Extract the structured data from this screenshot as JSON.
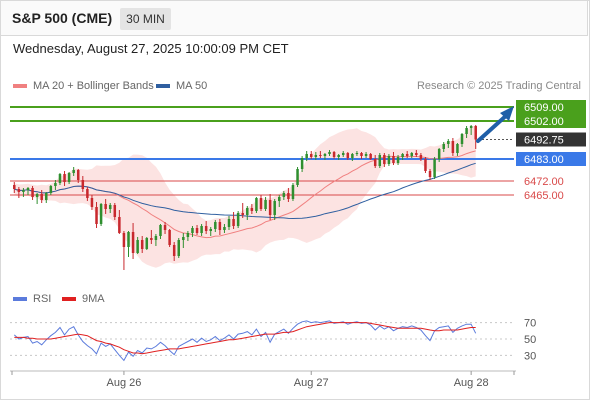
{
  "header": {
    "title": "S&P 500 (CME)",
    "timeframe": "30 MIN"
  },
  "datetime": "Wednesday, August 27, 2025 10:00:09 PM CET",
  "legend": {
    "ma20_label": "MA 20 + Bollinger Bands",
    "ma50_label": "MA 50",
    "rsi_label": "RSI",
    "ma9_label": "9MA"
  },
  "copyright": "Research © 2025 Trading Central",
  "colors": {
    "up": "#2f8f2f",
    "down": "#c8282d",
    "resistance": "#4aa01c",
    "pivot": "#3a79e8",
    "support": "#d94a4a",
    "current": "#333333",
    "arrow": "#1f5fa8",
    "ma20": "#f08080",
    "ma50": "#2f5fa0",
    "bollinger_fill": "#fbdad8",
    "rsi": "#5b7bdc",
    "rsi_ma": "#e02020"
  },
  "chart_data": [
    {
      "type": "candlestick",
      "title": "",
      "x_ticks": [
        "Aug 26",
        "Aug 27",
        "Aug 28"
      ],
      "ylim": [
        6420,
        6515
      ],
      "levels": [
        {
          "name": "resistance-2",
          "value": 6509.0,
          "label": "6509.00",
          "kind": "resistance"
        },
        {
          "name": "resistance-1",
          "value": 6502.0,
          "label": "6502.00",
          "kind": "resistance"
        },
        {
          "name": "current",
          "value": 6492.75,
          "label": "6492.75",
          "kind": "current"
        },
        {
          "name": "pivot",
          "value": 6483.0,
          "label": "6483.00",
          "kind": "pivot"
        },
        {
          "name": "support-1",
          "value": 6472.0,
          "label": "6472.00",
          "kind": "support"
        },
        {
          "name": "support-2",
          "value": 6465.0,
          "label": "6465.00",
          "kind": "support"
        }
      ],
      "candles": [
        [
          6470.0,
          6471.5,
          6466.0,
          6468.0
        ],
        [
          6468.0,
          6469.0,
          6463.5,
          6466.5
        ],
        [
          6466.5,
          6468.5,
          6464.0,
          6467.5
        ],
        [
          6467.5,
          6469.0,
          6465.0,
          6468.5
        ],
        [
          6468.5,
          6469.5,
          6462.5,
          6464.0
        ],
        [
          6464.0,
          6466.0,
          6460.5,
          6465.5
        ],
        [
          6465.5,
          6467.5,
          6461.0,
          6462.5
        ],
        [
          6462.5,
          6466.5,
          6461.0,
          6466.0
        ],
        [
          6466.0,
          6470.0,
          6465.0,
          6469.5
        ],
        [
          6469.5,
          6472.5,
          6467.5,
          6471.0
        ],
        [
          6471.0,
          6476.0,
          6470.0,
          6475.5
        ],
        [
          6475.5,
          6477.0,
          6469.5,
          6471.5
        ],
        [
          6471.5,
          6476.5,
          6470.5,
          6476.0
        ],
        [
          6476.0,
          6479.0,
          6474.5,
          6477.5
        ],
        [
          6477.5,
          6478.0,
          6471.0,
          6472.5
        ],
        [
          6472.5,
          6474.5,
          6466.5,
          6468.0
        ],
        [
          6468.0,
          6469.0,
          6462.0,
          6463.5
        ],
        [
          6463.5,
          6465.0,
          6457.5,
          6459.0
        ],
        [
          6459.0,
          6461.5,
          6448.5,
          6450.5
        ],
        [
          6450.5,
          6461.0,
          6449.5,
          6460.5
        ],
        [
          6460.5,
          6463.0,
          6455.5,
          6458.0
        ],
        [
          6458.0,
          6461.0,
          6456.0,
          6460.0
        ],
        [
          6460.0,
          6461.0,
          6452.5,
          6454.0
        ],
        [
          6454.0,
          6457.5,
          6445.5,
          6446.0
        ],
        [
          6446.0,
          6447.0,
          6427.5,
          6439.0
        ],
        [
          6439.0,
          6447.0,
          6434.0,
          6446.5
        ],
        [
          6446.5,
          6451.0,
          6433.0,
          6436.0
        ],
        [
          6436.0,
          6444.0,
          6435.5,
          6442.5
        ],
        [
          6442.5,
          6444.5,
          6436.0,
          6438.0
        ],
        [
          6438.0,
          6444.0,
          6437.5,
          6443.5
        ],
        [
          6443.5,
          6447.5,
          6440.5,
          6442.5
        ],
        [
          6442.5,
          6445.5,
          6439.5,
          6444.5
        ],
        [
          6444.5,
          6450.5,
          6443.0,
          6450.0
        ],
        [
          6450.0,
          6451.5,
          6445.5,
          6447.5
        ],
        [
          6447.5,
          6448.0,
          6439.0,
          6440.0
        ],
        [
          6440.0,
          6441.5,
          6432.0,
          6434.5
        ],
        [
          6434.5,
          6443.5,
          6433.5,
          6442.5
        ],
        [
          6442.5,
          6446.0,
          6438.5,
          6444.0
        ],
        [
          6444.0,
          6447.0,
          6442.0,
          6446.0
        ],
        [
          6446.0,
          6449.5,
          6444.0,
          6448.5
        ],
        [
          6448.5,
          6450.0,
          6445.0,
          6446.0
        ],
        [
          6446.0,
          6450.5,
          6444.5,
          6449.5
        ],
        [
          6449.5,
          6452.0,
          6445.5,
          6447.0
        ],
        [
          6447.0,
          6449.0,
          6444.5,
          6448.0
        ],
        [
          6448.0,
          6452.5,
          6446.5,
          6451.5
        ],
        [
          6451.5,
          6453.0,
          6445.0,
          6447.5
        ],
        [
          6447.5,
          6450.5,
          6446.0,
          6449.0
        ],
        [
          6449.0,
          6454.5,
          6447.5,
          6453.0
        ],
        [
          6453.0,
          6456.5,
          6448.0,
          6449.5
        ],
        [
          6449.5,
          6457.0,
          6448.5,
          6456.0
        ],
        [
          6456.0,
          6461.0,
          6453.5,
          6455.0
        ],
        [
          6455.0,
          6459.5,
          6452.5,
          6458.5
        ],
        [
          6458.5,
          6460.5,
          6455.5,
          6457.0
        ],
        [
          6457.0,
          6464.0,
          6456.0,
          6463.5
        ],
        [
          6463.5,
          6465.0,
          6457.0,
          6458.0
        ],
        [
          6458.0,
          6464.0,
          6457.0,
          6462.5
        ],
        [
          6462.5,
          6465.5,
          6452.5,
          6455.0
        ],
        [
          6455.0,
          6463.0,
          6452.5,
          6462.0
        ],
        [
          6462.0,
          6465.0,
          6459.0,
          6464.0
        ],
        [
          6464.0,
          6467.0,
          6462.5,
          6466.0
        ],
        [
          6466.0,
          6468.5,
          6461.5,
          6463.0
        ],
        [
          6463.0,
          6471.0,
          6462.0,
          6470.0
        ],
        [
          6470.0,
          6479.0,
          6469.0,
          6478.0
        ],
        [
          6478.0,
          6484.5,
          6476.5,
          6483.5
        ],
        [
          6483.5,
          6487.0,
          6482.0,
          6485.5
        ],
        [
          6485.5,
          6487.0,
          6483.0,
          6484.0
        ],
        [
          6484.0,
          6486.5,
          6482.5,
          6485.0
        ],
        [
          6485.0,
          6487.0,
          6483.5,
          6484.5
        ],
        [
          6484.5,
          6486.0,
          6482.5,
          6485.5
        ],
        [
          6485.5,
          6487.5,
          6484.5,
          6486.5
        ],
        [
          6486.5,
          6487.0,
          6483.0,
          6484.0
        ],
        [
          6484.0,
          6485.5,
          6482.5,
          6485.0
        ],
        [
          6485.0,
          6487.0,
          6484.0,
          6486.0
        ],
        [
          6486.0,
          6486.5,
          6482.5,
          6483.5
        ],
        [
          6483.5,
          6486.0,
          6482.0,
          6485.5
        ],
        [
          6485.5,
          6487.0,
          6484.5,
          6486.0
        ],
        [
          6486.0,
          6486.5,
          6483.0,
          6484.5
        ],
        [
          6484.5,
          6486.5,
          6483.5,
          6485.5
        ],
        [
          6485.5,
          6486.0,
          6482.5,
          6483.0
        ],
        [
          6483.0,
          6485.0,
          6478.5,
          6479.5
        ],
        [
          6479.5,
          6486.0,
          6478.5,
          6485.0
        ],
        [
          6485.0,
          6486.0,
          6479.0,
          6480.5
        ],
        [
          6480.5,
          6485.5,
          6479.5,
          6484.5
        ],
        [
          6484.5,
          6486.5,
          6480.0,
          6481.0
        ],
        [
          6481.0,
          6485.0,
          6480.0,
          6484.0
        ],
        [
          6484.0,
          6486.0,
          6482.5,
          6485.5
        ],
        [
          6485.5,
          6487.0,
          6483.5,
          6484.5
        ],
        [
          6484.5,
          6486.5,
          6483.5,
          6486.0
        ],
        [
          6486.0,
          6487.5,
          6484.0,
          6485.0
        ],
        [
          6485.0,
          6486.0,
          6482.0,
          6483.0
        ],
        [
          6483.0,
          6484.0,
          6476.0,
          6477.0
        ],
        [
          6477.0,
          6478.0,
          6472.5,
          6474.0
        ],
        [
          6474.0,
          6484.0,
          6473.0,
          6483.0
        ],
        [
          6483.0,
          6488.5,
          6481.5,
          6488.0
        ],
        [
          6488.0,
          6491.5,
          6486.5,
          6490.5
        ],
        [
          6490.5,
          6493.0,
          6488.5,
          6492.0
        ],
        [
          6492.0,
          6493.5,
          6484.5,
          6486.0
        ],
        [
          6486.0,
          6491.0,
          6484.5,
          6490.5
        ],
        [
          6490.5,
          6496.0,
          6489.0,
          6495.5
        ],
        [
          6495.5,
          6499.5,
          6493.5,
          6498.5
        ],
        [
          6498.5,
          6500.0,
          6495.0,
          6499.5
        ],
        [
          6499.5,
          6500.0,
          6488.0,
          6492.75
        ]
      ]
    },
    {
      "type": "line",
      "title": "",
      "yticks": [
        30,
        50,
        70
      ],
      "ylim": [
        22,
        78
      ],
      "series": [
        {
          "name": "RSI",
          "values": [
            55,
            50,
            52,
            53,
            45,
            47,
            43,
            49,
            54,
            58,
            64,
            55,
            62,
            65,
            55,
            47,
            42,
            38,
            32,
            45,
            41,
            44,
            37,
            30,
            24,
            34,
            29,
            36,
            33,
            39,
            38,
            41,
            46,
            42,
            36,
            31,
            41,
            44,
            47,
            50,
            46,
            51,
            47,
            49,
            53,
            48,
            51,
            55,
            50,
            56,
            57,
            59,
            55,
            62,
            53,
            58,
            46,
            56,
            59,
            62,
            57,
            63,
            68,
            71,
            72,
            70,
            71,
            70,
            71,
            72,
            69,
            70,
            71,
            68,
            70,
            71,
            69,
            70,
            67,
            61,
            66,
            62,
            65,
            60,
            63,
            65,
            64,
            66,
            64,
            61,
            54,
            48,
            60,
            64,
            65,
            66,
            58,
            63,
            66,
            68,
            68,
            57
          ]
        },
        {
          "name": "9MA",
          "values": [
            52,
            52,
            52,
            51,
            51,
            50,
            50,
            50,
            50,
            51,
            52,
            53,
            54,
            55,
            56,
            55,
            54,
            51,
            48,
            47,
            45,
            44,
            42,
            40,
            37,
            35,
            33,
            33,
            32,
            33,
            34,
            35,
            36,
            37,
            38,
            38,
            38,
            39,
            40,
            41,
            42,
            43,
            44,
            45,
            46,
            47,
            48,
            49,
            49,
            50,
            51,
            52,
            53,
            54,
            55,
            56,
            56,
            56,
            57,
            58,
            58,
            59,
            61,
            63,
            65,
            66,
            67,
            68,
            69,
            70,
            70,
            70,
            70,
            70,
            70,
            70,
            70,
            70,
            69,
            68,
            67,
            66,
            65,
            64,
            63,
            63,
            63,
            63,
            63,
            63,
            62,
            61,
            60,
            60,
            61,
            61,
            61,
            61,
            62,
            63,
            64,
            64
          ]
        }
      ]
    }
  ]
}
